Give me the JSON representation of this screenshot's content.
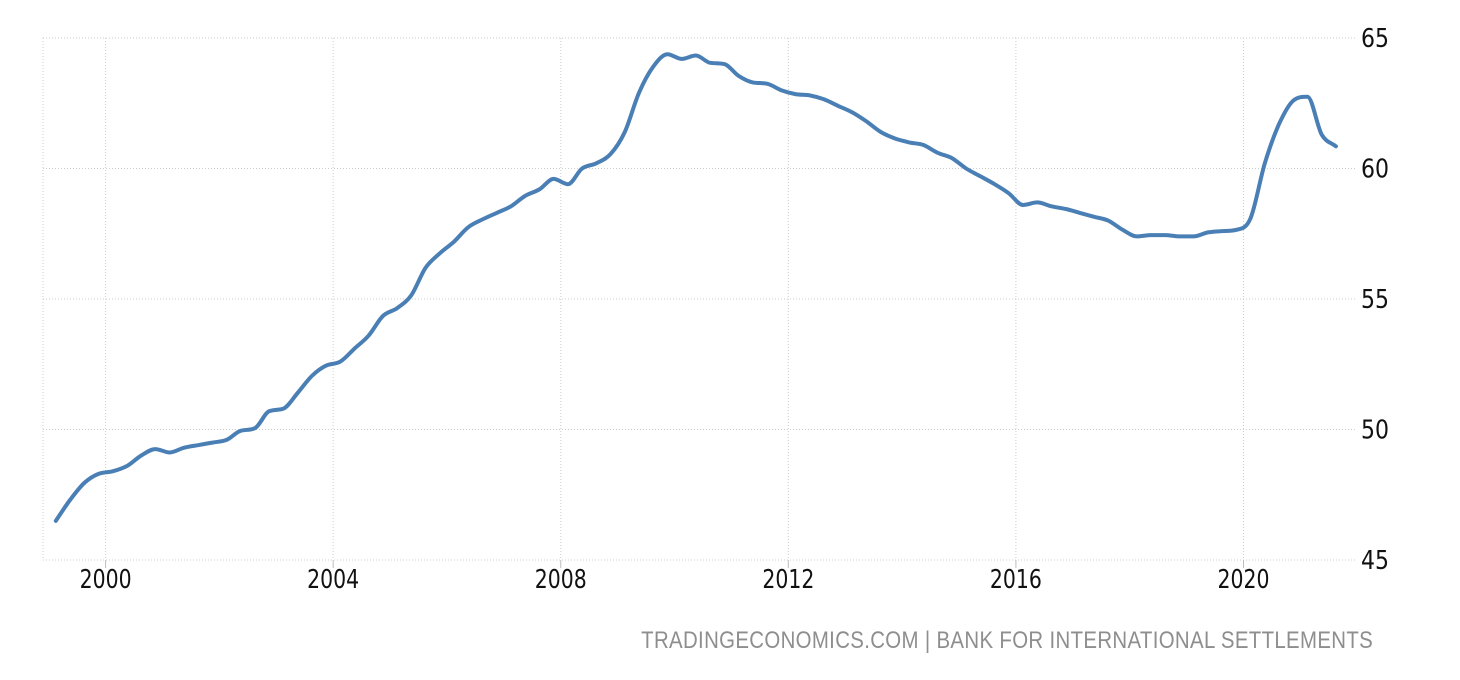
{
  "attribution": {
    "text": "TRADINGECONOMICS.COM | BANK FOR INTERNATIONAL SETTLEMENTS"
  },
  "colors": {
    "background": "#ffffff",
    "line": "#4a7fb5",
    "grid": "#cdcdcd",
    "tick": "#bdbdbd",
    "tick_label": "#111111",
    "attribution": "#8e8e8e"
  },
  "chart_data": {
    "type": "line",
    "title": "",
    "xlabel": "",
    "ylabel": "",
    "grid": "dotted",
    "legend_position": "none",
    "y_axis_side": "right",
    "xlim": [
      1998.9,
      2021.96
    ],
    "ylim": [
      45,
      65
    ],
    "y_ticks": [
      45,
      50,
      55,
      60,
      65
    ],
    "x_ticks": [
      {
        "year": 2000,
        "label": "2000"
      },
      {
        "year": 2004,
        "label": "2004"
      },
      {
        "year": 2008,
        "label": "2008"
      },
      {
        "year": 2012,
        "label": "2012"
      },
      {
        "year": 2016,
        "label": "2016"
      },
      {
        "year": 2020,
        "label": "2020"
      }
    ],
    "series": [
      {
        "name": "value",
        "frequency": "quarterly",
        "x_start": 1999.125,
        "x_step": 0.25,
        "values": [
          46.5,
          47.3,
          47.95,
          48.3,
          48.4,
          48.6,
          49.0,
          49.25,
          49.12,
          49.3,
          49.4,
          49.5,
          49.6,
          49.95,
          50.05,
          50.7,
          50.8,
          51.4,
          52.05,
          52.45,
          52.6,
          53.1,
          53.6,
          54.35,
          54.65,
          55.15,
          56.2,
          56.75,
          57.2,
          57.75,
          58.05,
          58.3,
          58.55,
          58.95,
          59.2,
          59.6,
          59.4,
          60.0,
          60.2,
          60.55,
          61.4,
          62.9,
          63.9,
          64.38,
          64.2,
          64.33,
          64.05,
          64.0,
          63.55,
          63.3,
          63.25,
          63.0,
          62.85,
          62.8,
          62.65,
          62.4,
          62.15,
          61.8,
          61.4,
          61.15,
          61.0,
          60.9,
          60.6,
          60.4,
          60.0,
          59.7,
          59.4,
          59.05,
          58.6,
          58.7,
          58.55,
          58.45,
          58.3,
          58.15,
          58.0,
          57.65,
          57.4,
          57.45,
          57.45,
          57.4,
          57.4,
          57.55,
          57.6,
          57.65,
          58.1,
          60.2,
          61.7,
          62.6,
          62.75,
          61.3,
          60.85
        ]
      }
    ]
  }
}
